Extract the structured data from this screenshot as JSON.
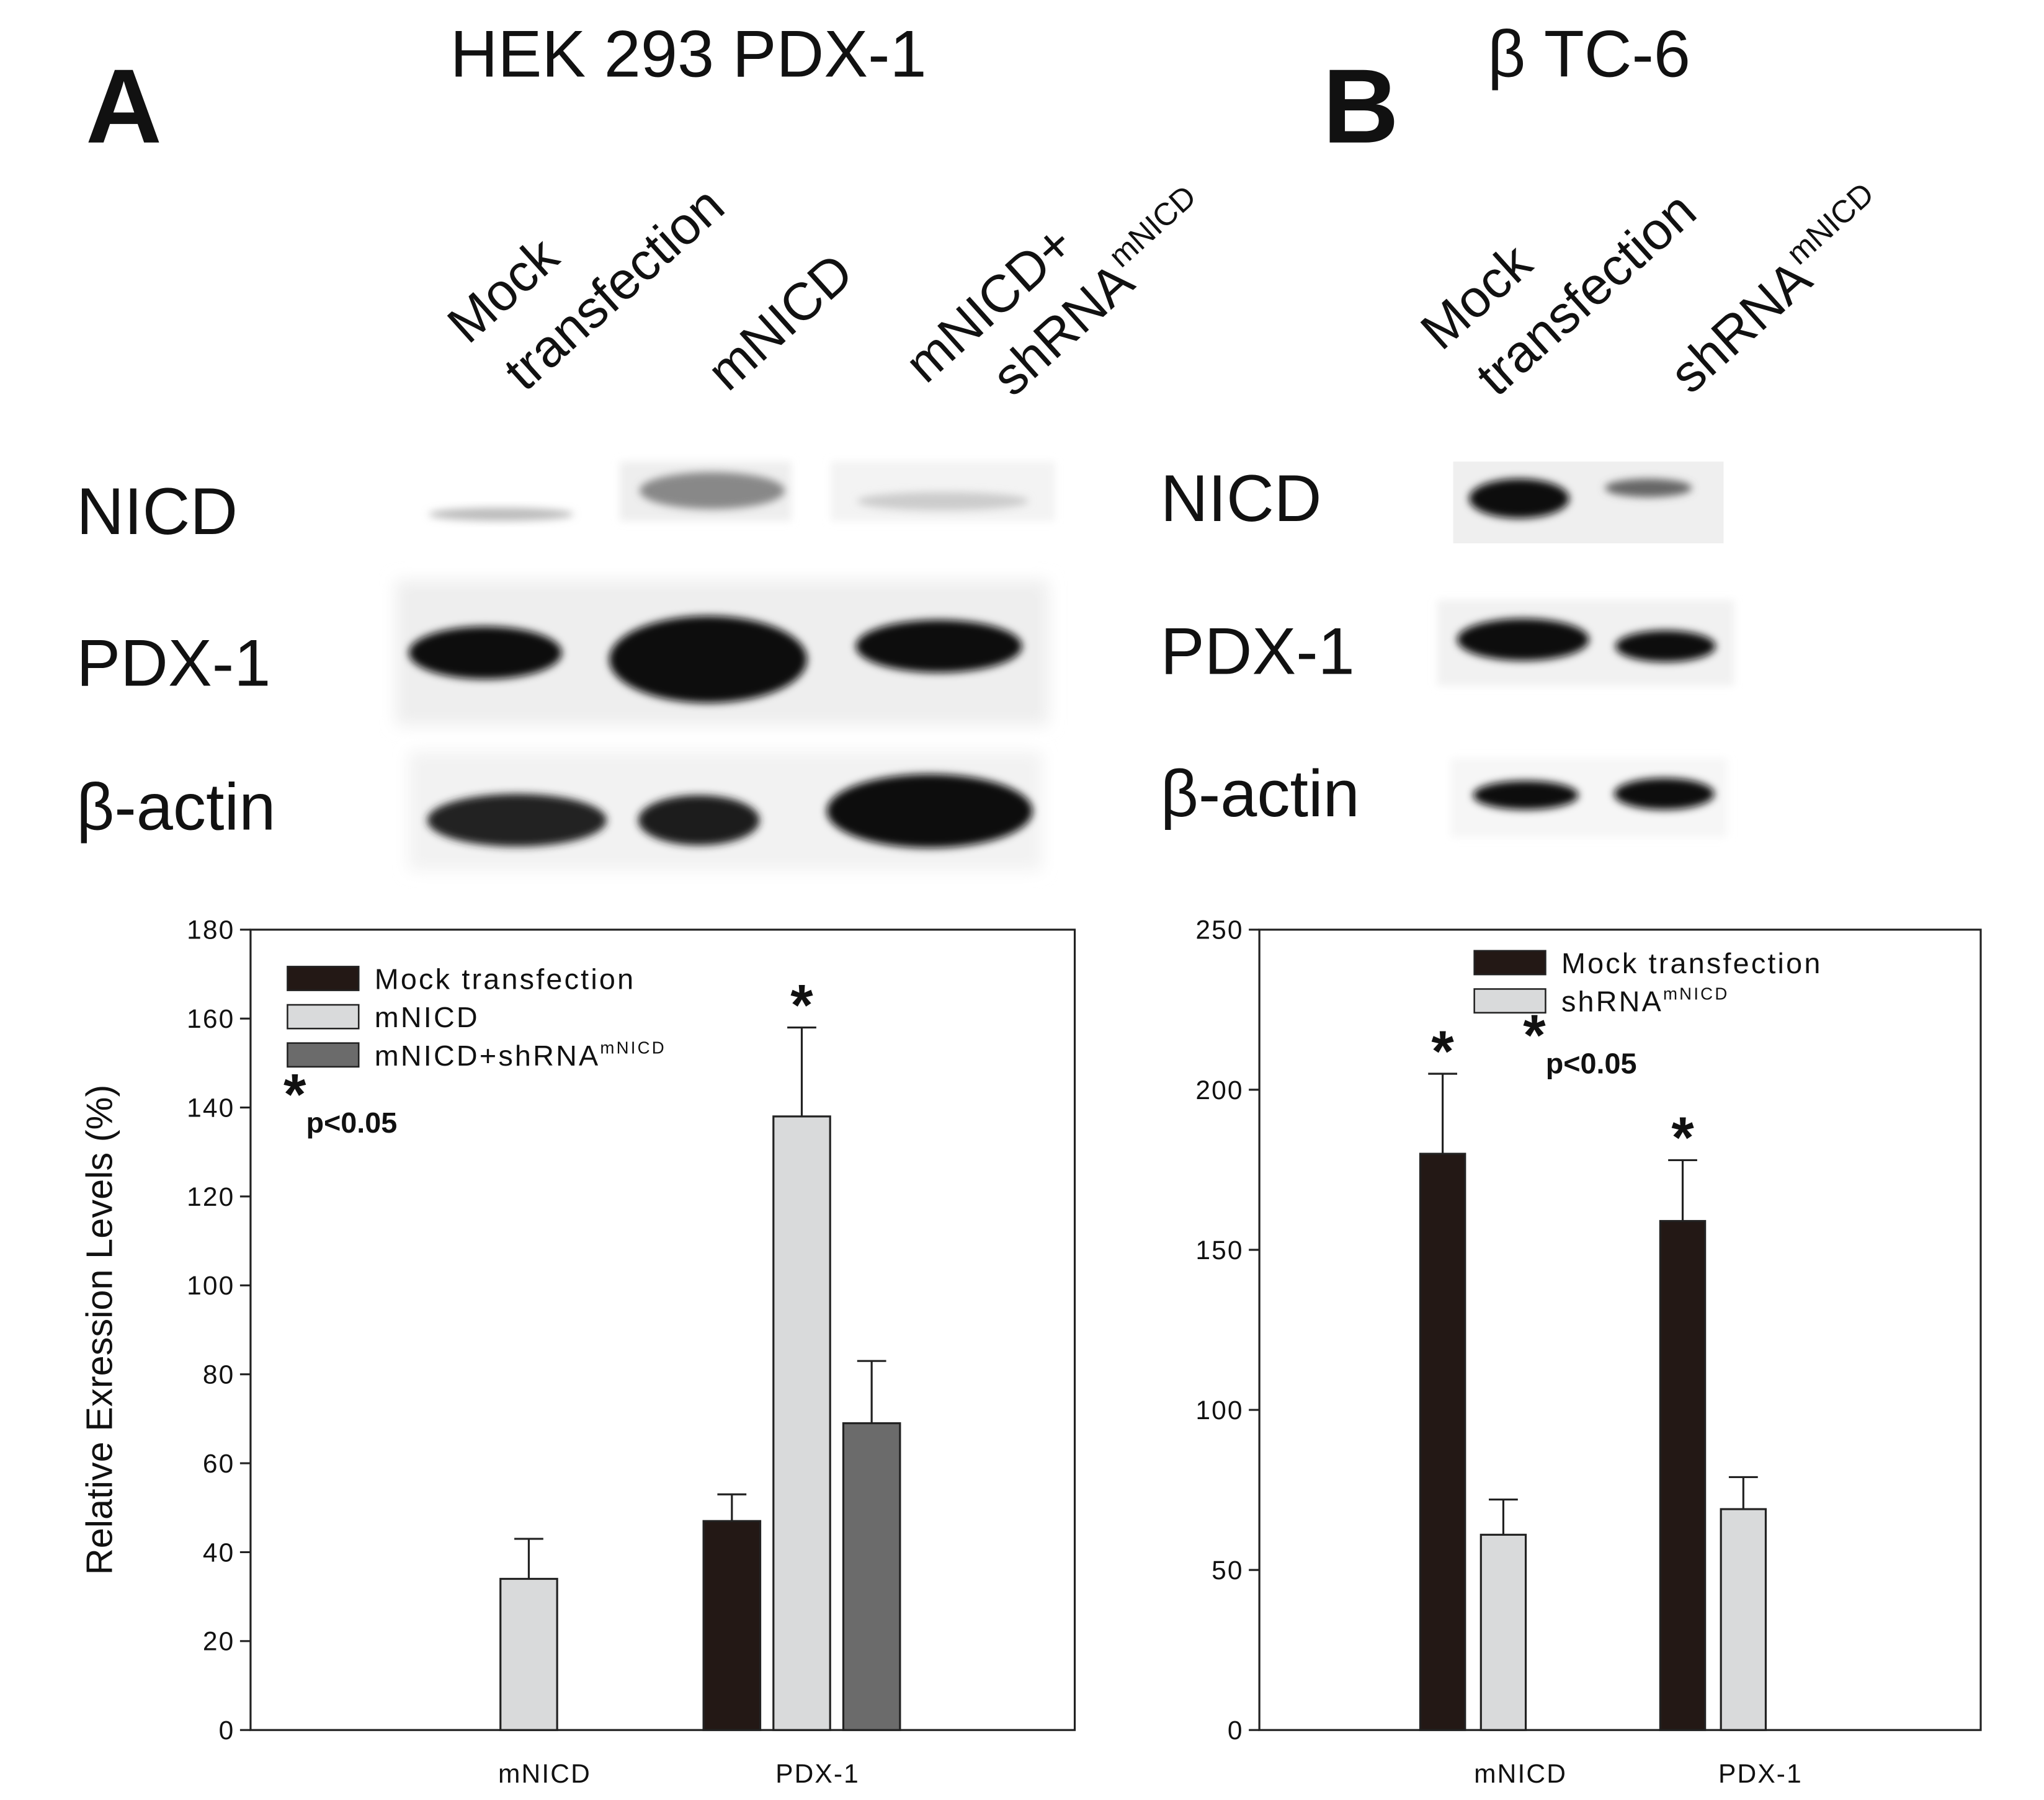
{
  "panels": [
    {
      "label": "A",
      "title": "HEK 293 PDX-1",
      "lanes": [
        {
          "lines": [
            "Mock",
            "transfection"
          ]
        },
        {
          "lines": [
            "mNICD"
          ]
        },
        {
          "lines": [
            "mNICD+",
            "shRNA"
          ],
          "superscript": "mNICD"
        }
      ],
      "rows": [
        "NICD",
        "PDX-1",
        "β-actin"
      ]
    },
    {
      "label": "B",
      "title": "β TC-6",
      "lanes": [
        {
          "lines": [
            "Mock",
            "transfection"
          ]
        },
        {
          "lines": [
            "shRNA"
          ],
          "superscript": "mNICD"
        }
      ],
      "rows": [
        "NICD",
        "PDX-1",
        "β-actin"
      ]
    }
  ],
  "chart_data": [
    {
      "type": "bar",
      "y_label": "Relative Exression Levels (%)",
      "categories": [
        "mNICD",
        "PDX-1"
      ],
      "series": [
        {
          "name": "Mock transfection",
          "color": "#231815",
          "values": [
            null,
            47
          ],
          "errors": [
            null,
            6
          ],
          "stars": [
            null,
            null
          ]
        },
        {
          "name": "mNICD",
          "color": "#d9dadb",
          "values": [
            34,
            138
          ],
          "errors": [
            9,
            20
          ],
          "stars": [
            null,
            "*"
          ]
        },
        {
          "name": "mNICD+shRNA",
          "name_superscript": "mNICD",
          "color": "#6b6b6b",
          "values": [
            null,
            69
          ],
          "errors": [
            null,
            14
          ],
          "stars": [
            null,
            null
          ]
        }
      ],
      "note": {
        "symbol": "*",
        "text": "p<0.05"
      },
      "ylim": [
        0,
        180
      ],
      "yticks": [
        0,
        20,
        40,
        60,
        80,
        100,
        120,
        140,
        160,
        180
      ]
    },
    {
      "type": "bar",
      "categories": [
        "mNICD",
        "PDX-1"
      ],
      "series": [
        {
          "name": "Mock transfection",
          "color": "#231815",
          "values": [
            180,
            159
          ],
          "errors": [
            25,
            19
          ],
          "stars": [
            "*",
            "*"
          ]
        },
        {
          "name": "shRNA",
          "name_superscript": "mNICD",
          "color": "#d9dadb",
          "values": [
            61,
            69
          ],
          "errors": [
            11,
            10
          ],
          "stars": [
            null,
            null
          ]
        }
      ],
      "note": {
        "symbol": "*",
        "text": "p<0.05"
      },
      "ylim": [
        0,
        250
      ],
      "yticks": [
        0,
        50,
        100,
        150,
        200,
        250
      ]
    }
  ]
}
